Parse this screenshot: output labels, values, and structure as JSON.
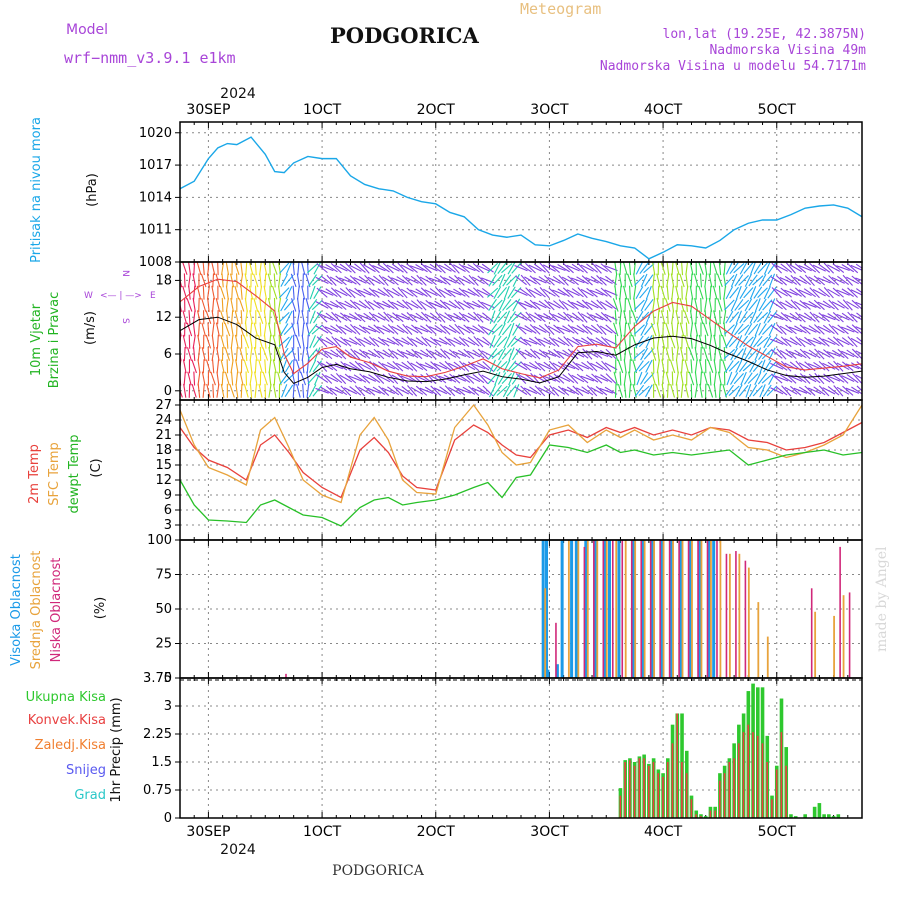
{
  "header": {
    "model_label": "Model",
    "model_name": "wrf−nmm_v3.9.1  e1km",
    "station": "PODGORICA",
    "subtitle": "Meteogram",
    "lonlat": "lon,lat (19.25E, 42.3875N)",
    "elevation": "Nadmorska Visina 49m",
    "model_elevation": "Nadmorska Visina u modelu 54.7171m",
    "top_year": "2024",
    "bottom_year": "2024",
    "footer": "PODGORICA",
    "watermark": "made by Angel"
  },
  "legend_wind": {
    "n": "N",
    "s": "S",
    "e": "E",
    "w": "W",
    "arrows": "<— | —>"
  },
  "colors": {
    "pressure": "#1aa7e8",
    "temp2m": "#e8413c",
    "sfc": "#e8a33c",
    "dew": "#28c028",
    "total_precip": "#2ec82e",
    "conv_precip": "#e84040",
    "strat_precip": "#f07f30",
    "snow": "#5a5af0",
    "graupel": "#2ac8c8",
    "cloud_high": "#1b9ae8",
    "cloud_mid": "#e8a33c",
    "cloud_low": "#d0287a"
  },
  "chart_data": [
    {
      "type": "line",
      "title": "",
      "ylabel_left": "Pritisak na nivou mora",
      "ylabel_unit": "(hPa)",
      "x_ticks": [
        "30SEP",
        "1OCT",
        "2OCT",
        "3OCT",
        "4OCT",
        "5OCT"
      ],
      "x_range_hours": [
        0,
        144
      ],
      "ylim": [
        1008,
        1021
      ],
      "y_ticks": [
        "1008",
        "1011",
        "1014",
        "1017",
        "1020"
      ],
      "series": [
        {
          "name": "",
          "x_hours": [
            0,
            3,
            6,
            8,
            10,
            12,
            15,
            18,
            20,
            22,
            24,
            27,
            30,
            33,
            36,
            39,
            42,
            45,
            48,
            51,
            54,
            57,
            60,
            63,
            66,
            69,
            72,
            75,
            78,
            81,
            84,
            87,
            90,
            93,
            96,
            99,
            102,
            105,
            108,
            111,
            114,
            117,
            120,
            123,
            126,
            129,
            132,
            135,
            138,
            141,
            144
          ],
          "values": [
            1014.8,
            1015.5,
            1017.6,
            1018.6,
            1019.0,
            1018.9,
            1019.6,
            1018.0,
            1016.4,
            1016.3,
            1017.2,
            1017.8,
            1017.6,
            1017.6,
            1016.0,
            1015.2,
            1014.8,
            1014.6,
            1014.0,
            1013.6,
            1013.4,
            1012.6,
            1012.2,
            1011.0,
            1010.5,
            1010.3,
            1010.5,
            1009.6,
            1009.5,
            1010.0,
            1010.6,
            1010.2,
            1009.9,
            1009.5,
            1009.3,
            1008.3,
            1008.9,
            1009.6,
            1009.5,
            1009.3,
            1010.0,
            1011.0,
            1011.6,
            1011.9,
            1011.9,
            1012.4,
            1013.0,
            1013.2,
            1013.3,
            1013.0,
            1012.2
          ]
        }
      ]
    },
    {
      "type": "line",
      "title": "",
      "ylabel_left": "10m Vjetar Brzina i Pravac",
      "ylabel_unit": "(m/s)",
      "x_range_hours": [
        0,
        144
      ],
      "ylim": [
        -1.5,
        21
      ],
      "y_ticks": [
        "0",
        "6",
        "12",
        "18"
      ],
      "series": [
        {
          "name": "speed",
          "x_hours": [
            0,
            4,
            8,
            12,
            16,
            20,
            22,
            24,
            27,
            30,
            33,
            36,
            40,
            44,
            48,
            52,
            56,
            60,
            64,
            68,
            72,
            76,
            80,
            84,
            88,
            92,
            96,
            100,
            104,
            108,
            112,
            116,
            120,
            124,
            128,
            132,
            136,
            140,
            144
          ],
          "values": [
            9.8,
            11.6,
            12.0,
            10.8,
            8.6,
            7.5,
            3.0,
            1.2,
            2.2,
            3.8,
            4.3,
            3.6,
            3.1,
            2.2,
            1.6,
            1.5,
            1.9,
            2.6,
            3.2,
            2.3,
            1.9,
            1.3,
            2.3,
            6.2,
            6.4,
            5.8,
            7.5,
            8.6,
            8.9,
            8.5,
            7.4,
            6.0,
            4.8,
            3.4,
            2.5,
            2.2,
            2.4,
            2.8,
            3.2
          ]
        },
        {
          "name": "gust",
          "x_hours": [
            0,
            4,
            8,
            12,
            16,
            20,
            22,
            24,
            27,
            30,
            33,
            36,
            40,
            44,
            48,
            52,
            56,
            60,
            64,
            68,
            72,
            76,
            80,
            84,
            88,
            92,
            96,
            100,
            104,
            108,
            112,
            116,
            120,
            124,
            128,
            132,
            136,
            140,
            144
          ],
          "values": [
            14.5,
            17.0,
            18.2,
            17.8,
            15.5,
            13.0,
            6.0,
            2.8,
            4.5,
            6.8,
            7.2,
            5.5,
            4.6,
            3.2,
            2.4,
            2.3,
            3.0,
            4.0,
            5.2,
            3.6,
            2.8,
            2.1,
            3.4,
            7.2,
            7.6,
            7.0,
            10.5,
            13.0,
            14.4,
            13.8,
            11.6,
            9.4,
            7.3,
            5.6,
            3.9,
            3.4,
            3.7,
            4.0,
            4.4
          ]
        }
      ]
    },
    {
      "type": "line",
      "title": "",
      "ylabel_left": "2m Temp  SFC Temp  dewpt Temp",
      "ylabel_unit": "(C)",
      "x_range_hours": [
        0,
        144
      ],
      "ylim": [
        0,
        28
      ],
      "y_ticks": [
        "3",
        "6",
        "9",
        "12",
        "15",
        "18",
        "21",
        "24",
        "27"
      ],
      "series": [
        {
          "name": "2m Temp",
          "x_hours": [
            0,
            3,
            6,
            10,
            14,
            17,
            20,
            23,
            26,
            30,
            34,
            38,
            41,
            44,
            47,
            50,
            54,
            58,
            62,
            65,
            68,
            71,
            74,
            78,
            82,
            86,
            90,
            93,
            96,
            100,
            104,
            108,
            112,
            116,
            120,
            124,
            128,
            132,
            136,
            140,
            144
          ],
          "values": [
            22.5,
            18.5,
            16.0,
            14.5,
            12.0,
            19.0,
            21.0,
            17.5,
            13.5,
            10.5,
            8.5,
            18.0,
            20.5,
            17.5,
            12.8,
            10.5,
            10.0,
            20.0,
            23.0,
            21.5,
            19.0,
            17.0,
            16.5,
            21.0,
            22.0,
            20.5,
            22.5,
            21.5,
            22.5,
            21.0,
            22.0,
            21.0,
            22.5,
            22.0,
            20.0,
            19.5,
            18.0,
            18.5,
            19.5,
            21.5,
            23.5
          ]
        },
        {
          "name": "SFC Temp",
          "x_hours": [
            0,
            3,
            6,
            10,
            14,
            17,
            20,
            23,
            26,
            30,
            34,
            38,
            41,
            44,
            47,
            50,
            54,
            58,
            62,
            65,
            68,
            71,
            74,
            78,
            82,
            86,
            90,
            93,
            96,
            100,
            104,
            108,
            112,
            116,
            120,
            124,
            128,
            132,
            136,
            140,
            144
          ],
          "values": [
            26.0,
            19.0,
            14.5,
            13.0,
            11.0,
            22.0,
            24.5,
            18.5,
            12.0,
            9.0,
            7.5,
            21.0,
            24.5,
            20.0,
            12.0,
            9.5,
            9.2,
            22.5,
            27.0,
            23.0,
            17.5,
            15.0,
            15.5,
            22.0,
            23.0,
            19.5,
            22.0,
            20.5,
            22.0,
            20.0,
            21.0,
            20.0,
            22.5,
            21.5,
            18.5,
            18.0,
            16.5,
            17.5,
            19.0,
            21.0,
            27.0
          ]
        },
        {
          "name": "dewpt Temp",
          "x_hours": [
            0,
            3,
            6,
            10,
            14,
            17,
            20,
            23,
            26,
            30,
            34,
            38,
            41,
            44,
            47,
            50,
            54,
            58,
            62,
            65,
            68,
            71,
            74,
            78,
            82,
            86,
            90,
            93,
            96,
            100,
            104,
            108,
            112,
            116,
            120,
            124,
            128,
            132,
            136,
            140,
            144
          ],
          "values": [
            12.0,
            7.0,
            4.0,
            3.8,
            3.5,
            7.0,
            8.0,
            6.5,
            5.0,
            4.5,
            2.8,
            6.5,
            8.0,
            8.5,
            7.0,
            7.5,
            8.0,
            9.0,
            10.5,
            11.5,
            8.5,
            12.5,
            13.0,
            19.0,
            18.5,
            17.5,
            19.0,
            17.5,
            18.0,
            17.0,
            17.5,
            17.0,
            17.5,
            18.0,
            15.0,
            16.0,
            17.0,
            17.5,
            18.0,
            17.0,
            17.5
          ]
        }
      ]
    },
    {
      "type": "bar",
      "title": "",
      "ylabel_left": "Visoka Oblacnost  Srednja Oblacnost  Niska Oblacnost",
      "ylabel_unit": "(%)",
      "x_range_hours": [
        0,
        144
      ],
      "ylim": [
        0,
        100
      ],
      "y_ticks": [
        "0",
        "25",
        "50",
        "75",
        "100"
      ],
      "series": [
        {
          "name": "Visoka Oblacnost",
          "x_hours": [
            77,
            77.7,
            78,
            80,
            81,
            83,
            84,
            86,
            88,
            90,
            91,
            93,
            96,
            98,
            100,
            102,
            104,
            106,
            108,
            110,
            112,
            113
          ],
          "values": [
            100,
            100,
            6,
            10,
            100,
            100,
            100,
            100,
            100,
            100,
            100,
            100,
            100,
            100,
            100,
            100,
            100,
            100,
            100,
            100,
            100,
            100
          ]
        },
        {
          "name": "Srednja Oblacnost",
          "x_hours": [
            77,
            82,
            84,
            86,
            88,
            90,
            92,
            94,
            96,
            98,
            100,
            102,
            104,
            106,
            108,
            110,
            112,
            114,
            116,
            118,
            120,
            122,
            124,
            126,
            128,
            130,
            132,
            134,
            136,
            138,
            140,
            142
          ],
          "values": [
            65,
            100,
            100,
            100,
            100,
            100,
            100,
            100,
            100,
            100,
            100,
            100,
            100,
            100,
            100,
            100,
            100,
            100,
            90,
            90,
            80,
            55,
            30,
            0,
            0,
            0,
            0,
            48,
            0,
            45,
            60,
            0
          ]
        },
        {
          "name": "Niska Oblacnost",
          "x_hours": [
            22,
            79,
            85,
            87,
            89,
            91,
            93,
            95,
            97,
            99,
            101,
            103,
            105,
            107,
            109,
            111,
            113,
            115,
            117,
            119,
            121,
            123,
            133,
            139,
            141
          ],
          "values": [
            3,
            40,
            95,
            100,
            100,
            100,
            100,
            100,
            100,
            100,
            100,
            100,
            100,
            100,
            100,
            100,
            100,
            90,
            92,
            85,
            0,
            0,
            65,
            95,
            62
          ]
        }
      ]
    },
    {
      "type": "bar",
      "title": "",
      "ylabel_left": "1hr Precip",
      "ylabel_unit": "(mm)",
      "legend": [
        "Ukupna Kisa",
        "Konvek.Kisa",
        "Zaledj.Kisa",
        "Snijeg",
        "Grad"
      ],
      "x_ticks": [
        "30SEP",
        "1OCT",
        "2OCT",
        "3OCT",
        "4OCT",
        "5OCT"
      ],
      "x_range_hours": [
        0,
        144
      ],
      "ylim": [
        0,
        3.75
      ],
      "y_ticks": [
        "0",
        "0.75",
        "1.5",
        "2.25",
        "3",
        "3.75"
      ],
      "series": [
        {
          "name": "Ukupna Kisa",
          "x_hours": [
            93,
            94,
            95,
            96,
            97,
            98,
            99,
            100,
            101,
            102,
            103,
            104,
            105,
            106,
            107,
            108,
            109,
            110,
            111,
            112,
            113,
            114,
            115,
            116,
            117,
            118,
            119,
            120,
            121,
            122,
            123,
            124,
            125,
            126,
            127,
            128,
            129,
            130,
            131,
            132,
            133,
            134,
            135,
            136,
            137,
            138,
            139,
            140,
            141,
            142,
            143,
            144
          ],
          "values": [
            0.8,
            1.55,
            1.6,
            1.5,
            1.65,
            1.7,
            1.45,
            1.6,
            1.3,
            1.2,
            1.6,
            2.5,
            2.8,
            2.8,
            1.8,
            0.6,
            0.2,
            0.1,
            0.05,
            0.3,
            0.3,
            1.2,
            1.4,
            1.6,
            2.0,
            2.5,
            2.8,
            3.4,
            3.6,
            3.5,
            3.5,
            2.2,
            0.6,
            1.4,
            3.2,
            1.9,
            0.1,
            0.05,
            0.0,
            0.1,
            0.0,
            0.3,
            0.4,
            0.1,
            0.1,
            0.05,
            0.1,
            0.0,
            0.0,
            0.0,
            0.0,
            0.0
          ]
        },
        {
          "name": "Konvek.Kisa",
          "x_hours": [
            93,
            94,
            95,
            96,
            97,
            98,
            99,
            100,
            101,
            102,
            103,
            104,
            105,
            106,
            107,
            108,
            109,
            110,
            111,
            112,
            113,
            114,
            115,
            116,
            117,
            118,
            119,
            120,
            121,
            122,
            123,
            124,
            125,
            126,
            127,
            128
          ],
          "values": [
            0.6,
            1.5,
            1.55,
            1.4,
            1.6,
            1.6,
            1.4,
            1.5,
            1.2,
            1.1,
            1.5,
            2.0,
            2.8,
            1.5,
            1.2,
            0.5,
            0.1,
            0.05,
            0.0,
            0.2,
            0.2,
            1.0,
            1.2,
            1.5,
            1.6,
            2.0,
            2.3,
            2.5,
            2.3,
            2.2,
            2.0,
            1.5,
            0.5,
            1.3,
            2.3,
            1.4
          ]
        }
      ]
    }
  ]
}
